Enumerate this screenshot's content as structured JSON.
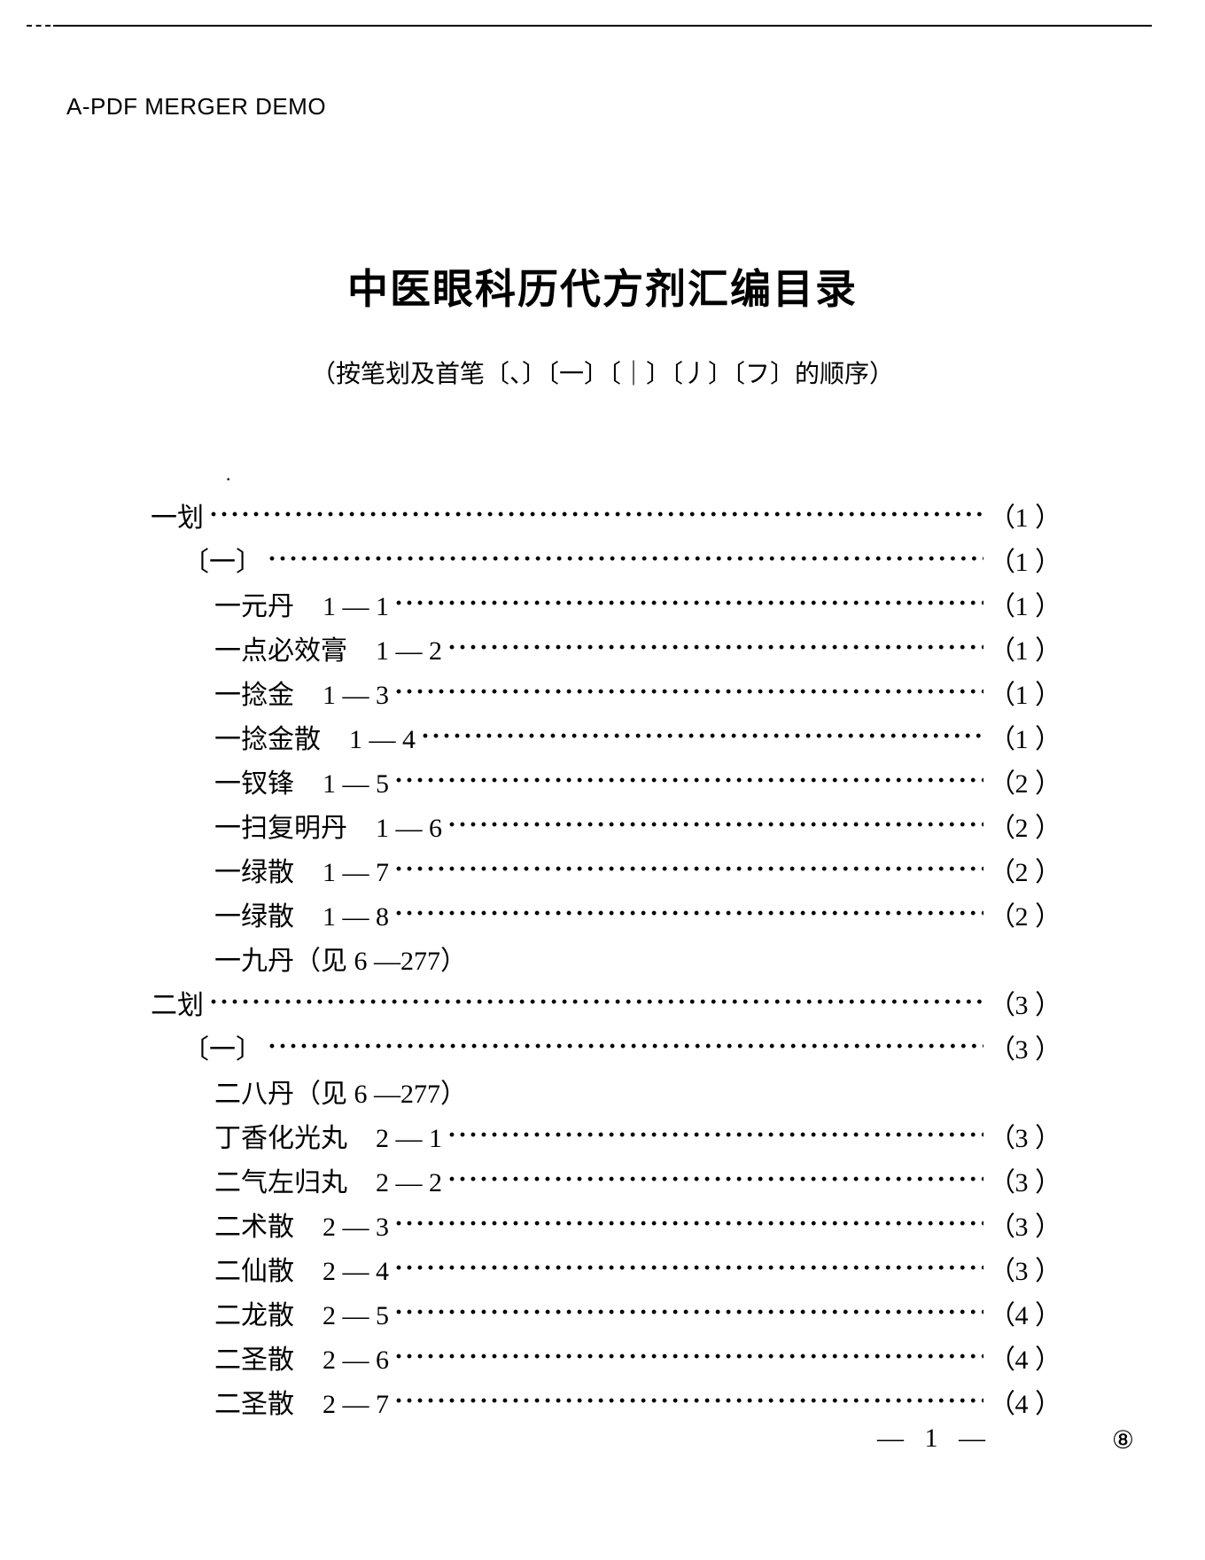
{
  "watermark": "A-PDF MERGER DEMO",
  "title": "中医眼科历代方剂汇编目录",
  "subtitle": "（按笔划及首笔〔、〕〔一〕〔｜〕〔丿〕〔フ〕的顺序）",
  "toc": [
    {
      "indent": 0,
      "label": "一划",
      "code": "",
      "page": "1",
      "dots": true
    },
    {
      "indent": 1,
      "label": "〔一〕",
      "code": "",
      "page": "1",
      "dots": true
    },
    {
      "indent": 2,
      "label": "一元丹",
      "code": "1 — 1",
      "page": "1",
      "dots": true
    },
    {
      "indent": 2,
      "label": "一点必效膏",
      "code": "1 — 2",
      "page": "1",
      "dots": true
    },
    {
      "indent": 2,
      "label": "一捻金",
      "code": "1 — 3",
      "page": "1",
      "dots": true
    },
    {
      "indent": 2,
      "label": "一捻金散",
      "code": "1 — 4",
      "page": "1",
      "dots": true
    },
    {
      "indent": 2,
      "label": "一钗锋",
      "code": "1 — 5",
      "page": "2",
      "dots": true
    },
    {
      "indent": 2,
      "label": "一扫复明丹",
      "code": "1 — 6",
      "page": "2",
      "dots": true
    },
    {
      "indent": 2,
      "label": "一绿散",
      "code": "1 — 7",
      "page": "2",
      "dots": true
    },
    {
      "indent": 2,
      "label": "一绿散",
      "code": "1 — 8",
      "page": "2",
      "dots": true
    },
    {
      "indent": 2,
      "label": "一九丹（见 6 —277）",
      "code": "",
      "page": "",
      "dots": false
    },
    {
      "indent": 0,
      "label": "二划",
      "code": "",
      "page": "3",
      "dots": true
    },
    {
      "indent": 1,
      "label": "〔一〕",
      "code": "",
      "page": "3",
      "dots": true
    },
    {
      "indent": 2,
      "label": "二八丹（见 6 —277）",
      "code": "",
      "page": "",
      "dots": false
    },
    {
      "indent": 2,
      "label": "丁香化光丸",
      "code": "2 — 1",
      "page": "3",
      "dots": true
    },
    {
      "indent": 2,
      "label": "二气左归丸",
      "code": "2 — 2",
      "page": "3",
      "dots": true
    },
    {
      "indent": 2,
      "label": "二术散",
      "code": "2 — 3",
      "page": "3",
      "dots": true
    },
    {
      "indent": 2,
      "label": "二仙散",
      "code": "2 — 4",
      "page": "3",
      "dots": true
    },
    {
      "indent": 2,
      "label": "二龙散",
      "code": "2 — 5",
      "page": "4",
      "dots": true
    },
    {
      "indent": 2,
      "label": "二圣散",
      "code": "2 — 6",
      "page": "4",
      "dots": true
    },
    {
      "indent": 2,
      "label": "二圣散",
      "code": "2 — 7",
      "page": "4",
      "dots": true
    }
  ],
  "footer": {
    "pagenum": "— 1 —",
    "circled": "⑧"
  }
}
